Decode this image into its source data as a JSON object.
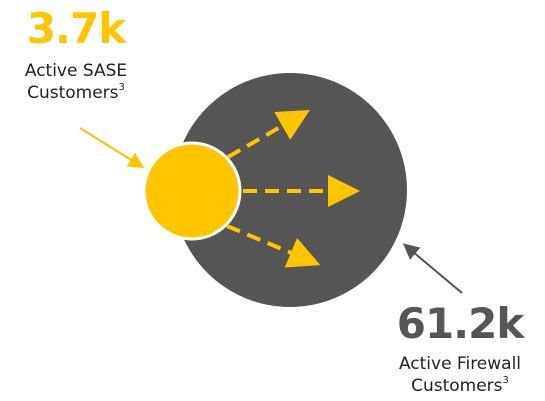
{
  "colors": {
    "accent_yellow": "#FFC600",
    "dark_circle": "#555555",
    "text": "#222222",
    "connector_yellow": "#F5C400",
    "connector_gray": "#555555"
  },
  "sase": {
    "value": "3.7k",
    "label_line1": "Active SASE",
    "label_line2": "Customers",
    "footnote": "3"
  },
  "firewall": {
    "value": "61.2k",
    "label_line1": "Active Firewall",
    "label_line2": "Customers",
    "footnote": "3"
  }
}
